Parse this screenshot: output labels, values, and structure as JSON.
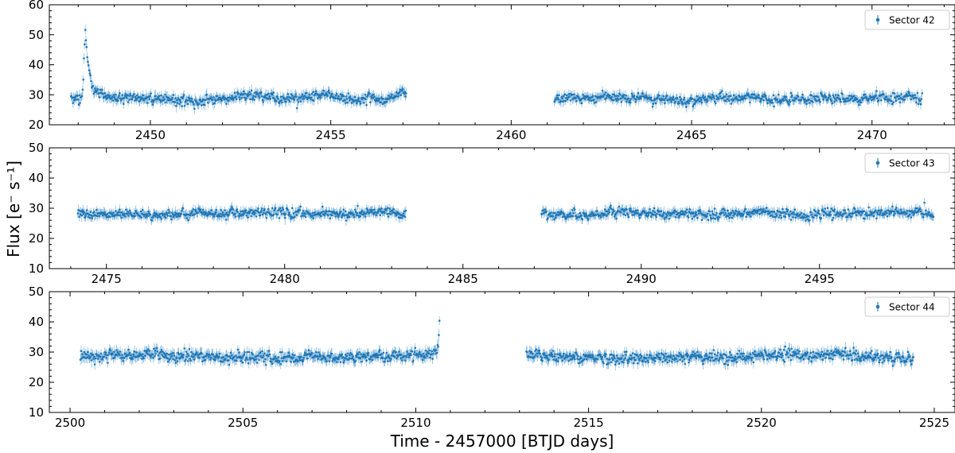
{
  "figure": {
    "xlabel": "Time - 2457000 [BTJD days]",
    "ylabel": "Flux [e⁻ s⁻¹]",
    "series_color": "#1f77b4"
  },
  "chart_data": [
    {
      "type": "scatter",
      "title": "",
      "legend": "Sector 42",
      "legend_position": "top-right",
      "grid": false,
      "xlim": [
        2447.2,
        2472.3
      ],
      "ylim": [
        20,
        60
      ],
      "x_ticks": [
        2450,
        2455,
        2460,
        2465,
        2470
      ],
      "y_ticks": [
        20,
        30,
        40,
        50,
        60
      ],
      "segments": [
        {
          "start": 2447.8,
          "end": 2457.1,
          "baseline": 28.8,
          "noise": 1.2,
          "cadence": 0.018,
          "flare": {
            "peak_time": 2448.2,
            "peak_flux": 51.5,
            "rise": 0.05,
            "decay": 0.12
          },
          "ramp": {
            "time": 2456.8,
            "flux": 30.5
          }
        },
        {
          "start": 2461.2,
          "end": 2471.4,
          "baseline": 28.8,
          "noise": 1.1,
          "cadence": 0.018
        }
      ]
    },
    {
      "type": "scatter",
      "title": "",
      "legend": "Sector 43",
      "legend_position": "top-right",
      "grid": false,
      "xlim": [
        2473.4,
        2498.8
      ],
      "ylim": [
        10,
        50
      ],
      "x_ticks": [
        2475,
        2480,
        2485,
        2490,
        2495
      ],
      "y_ticks": [
        10,
        20,
        30,
        40,
        50
      ],
      "segments": [
        {
          "start": 2474.2,
          "end": 2483.4,
          "baseline": 28.3,
          "noise": 1.1,
          "cadence": 0.018
        },
        {
          "start": 2487.2,
          "end": 2498.2,
          "baseline": 28.3,
          "noise": 1.1,
          "cadence": 0.018
        }
      ]
    },
    {
      "type": "scatter",
      "title": "",
      "legend": "Sector 44",
      "legend_position": "top-right",
      "grid": false,
      "xlim": [
        2499.4,
        2525.6
      ],
      "ylim": [
        10,
        50
      ],
      "x_ticks": [
        2500,
        2505,
        2510,
        2515,
        2520,
        2525
      ],
      "y_ticks": [
        10,
        20,
        30,
        40,
        50
      ],
      "segments": [
        {
          "start": 2500.3,
          "end": 2510.7,
          "baseline": 28.5,
          "noise": 1.3,
          "cadence": 0.018,
          "flare": {
            "peak_time": 2510.7,
            "peak_flux": 39.5,
            "rise": 0.04,
            "decay": 0.08
          }
        },
        {
          "start": 2513.2,
          "end": 2524.4,
          "baseline": 28.5,
          "noise": 1.3,
          "cadence": 0.018
        }
      ]
    }
  ]
}
